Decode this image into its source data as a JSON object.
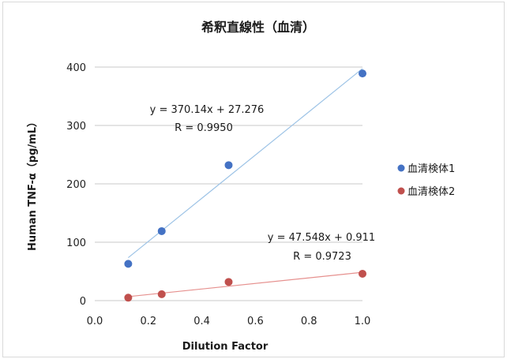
{
  "chart_data": {
    "type": "scatter",
    "title": "希釈直線性（血清）",
    "xlabel": "Dilution Factor",
    "ylabel": "Human TNF-α（pg/mL）",
    "xlim": [
      0.0,
      1.0
    ],
    "ylim": [
      0,
      400
    ],
    "xticks": [
      "0.0",
      "0.2",
      "0.4",
      "0.6",
      "0.8",
      "1.0"
    ],
    "yticks": [
      "0",
      "100",
      "200",
      "300",
      "400"
    ],
    "grid": "horizontal",
    "legend": "right",
    "series": [
      {
        "name": "血清検体1",
        "color": "#4472c4",
        "trend_color": "#9dc3e6",
        "x": [
          0.125,
          0.25,
          0.5,
          1.0
        ],
        "y": [
          63,
          119,
          232,
          389
        ],
        "trendline": {
          "slope": 370.14,
          "intercept": 27.276
        },
        "equation": "y = 370.14x + 27.276",
        "r_value": "R = 0.9950"
      },
      {
        "name": "血清検体2",
        "color": "#c0504d",
        "trend_color": "#e6908e",
        "x": [
          0.125,
          0.25,
          0.5,
          1.0
        ],
        "y": [
          5,
          11,
          32,
          46
        ],
        "trendline": {
          "slope": 47.548,
          "intercept": 0.911
        },
        "equation": "y = 47.548x + 0.911",
        "r_value": "R = 0.9723"
      }
    ]
  }
}
